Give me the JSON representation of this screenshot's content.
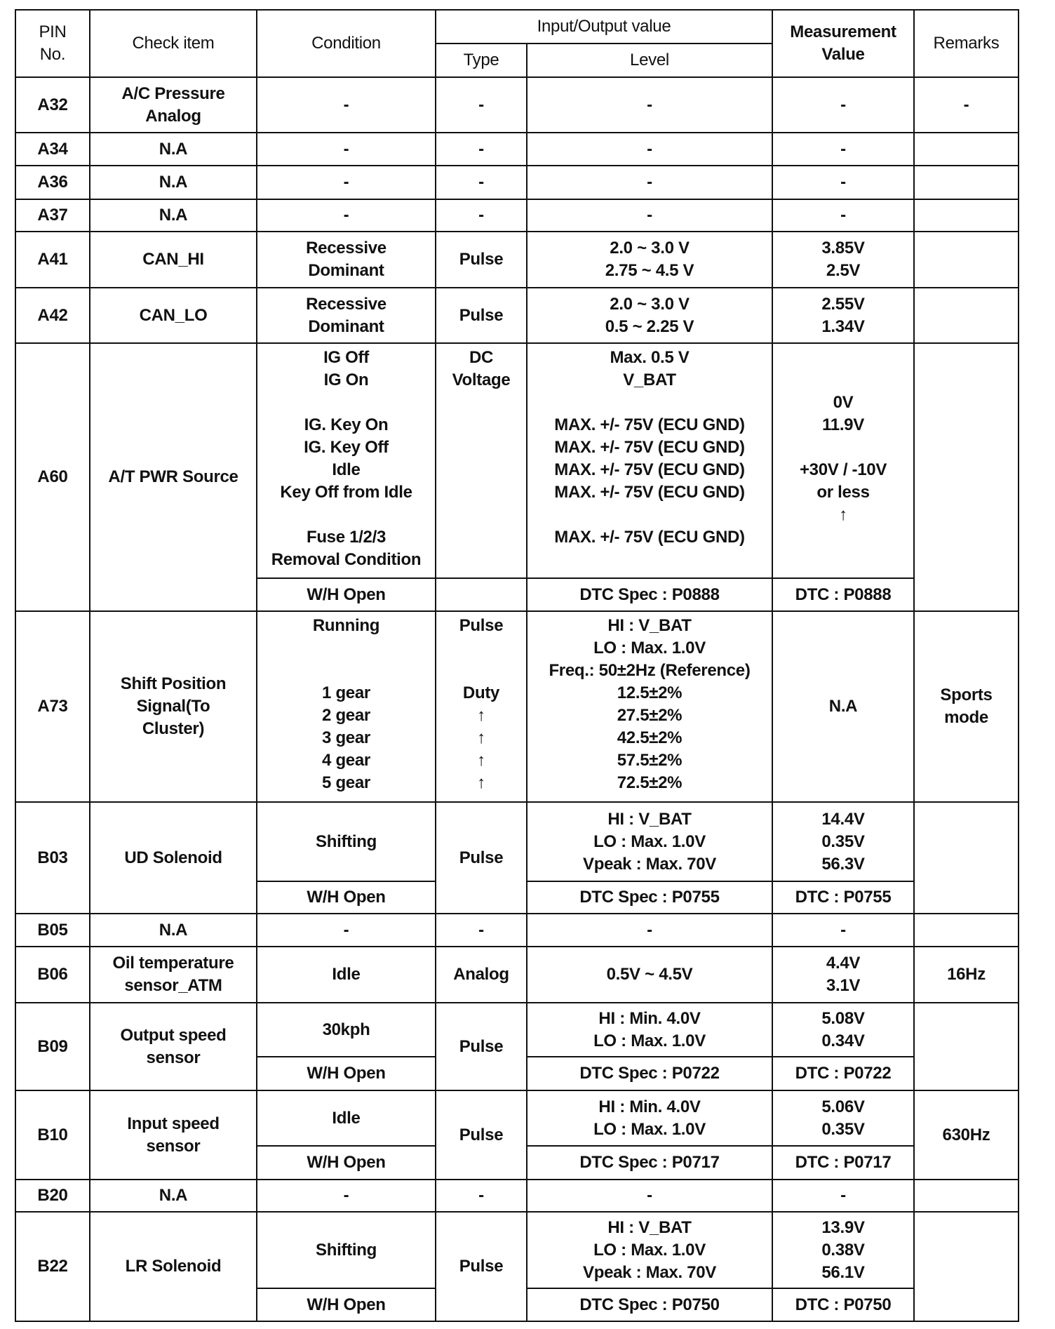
{
  "header": {
    "pin": "PIN\nNo.",
    "check_item": "Check item",
    "condition": "Condition",
    "io_value": "Input/Output value",
    "type": "Type",
    "level": "Level",
    "measurement": "Measurement\nValue",
    "remarks": "Remarks"
  },
  "rows": [
    {
      "pin": "A32",
      "check_item": "A/C Pressure\nAnalog",
      "condition": "-",
      "type": "-",
      "level": "-",
      "measurement": "-",
      "remarks": "-"
    },
    {
      "pin": "A34",
      "check_item": "N.A",
      "condition": "-",
      "type": "-",
      "level": "-",
      "measurement": "-",
      "remarks": ""
    },
    {
      "pin": "A36",
      "check_item": "N.A",
      "condition": "-",
      "type": "-",
      "level": "-",
      "measurement": "-",
      "remarks": ""
    },
    {
      "pin": "A37",
      "check_item": "N.A",
      "condition": "-",
      "type": "-",
      "level": "-",
      "measurement": "-",
      "remarks": ""
    },
    {
      "pin": "A41",
      "check_item": "CAN_HI",
      "condition": "Recessive\nDominant",
      "type": "Pulse",
      "level": "2.0 ~ 3.0 V\n2.75 ~ 4.5 V",
      "measurement": "3.85V\n2.5V",
      "remarks": ""
    },
    {
      "pin": "A42",
      "check_item": "CAN_LO",
      "condition": "Recessive\nDominant",
      "type": "Pulse",
      "level": "2.0 ~ 3.0 V\n0.5 ~ 2.25 V",
      "measurement": "2.55V\n1.34V",
      "remarks": ""
    },
    {
      "pin": "A60",
      "check_item": "A/T PWR Source",
      "condition": "IG Off\nIG On\n\nIG. Key On\nIG. Key Off\nIdle\nKey Off from Idle\n\nFuse 1/2/3\nRemoval Condition",
      "type": "DC\nVoltage",
      "level": "Max.  0.5 V\nV_BAT\n\nMAX. +/- 75V (ECU GND)\nMAX. +/- 75V (ECU GND)\nMAX. +/- 75V (ECU GND)\nMAX. +/- 75V (ECU GND)\n\nMAX. +/- 75V (ECU GND)",
      "measurement": "\n\n0V\n11.9V\n\n+30V / -10V\nor less\n↑",
      "remarks": "",
      "sub": {
        "condition": "W/H Open",
        "type": "",
        "level": "DTC Spec :  P0888",
        "measurement": "DTC : P0888"
      }
    },
    {
      "pin": "A73",
      "check_item": "Shift Position\nSignal(To\nCluster)",
      "condition": "Running\n\n\n1 gear\n2 gear\n3 gear\n4 gear\n5 gear",
      "type": "Pulse\n\n\nDuty\n↑\n↑\n↑\n↑",
      "level": "HI : V_BAT\nLO : Max.  1.0V\nFreq.: 50±2Hz (Reference)\n12.5±2%\n27.5±2%\n42.5±2%\n57.5±2%\n72.5±2%",
      "measurement": "N.A",
      "remarks": "Sports\nmode"
    },
    {
      "pin": "B03",
      "check_item": "UD Solenoid",
      "condition": "Shifting",
      "type": "Pulse",
      "level": "HI : V_BAT\nLO : Max.  1.0V\nVpeak :  Max.  70V",
      "measurement": "14.4V\n0.35V\n56.3V",
      "remarks": "",
      "sub": {
        "condition": "W/H Open",
        "level": "DTC Spec :  P0755",
        "measurement": "DTC : P0755"
      }
    },
    {
      "pin": "B05",
      "check_item": "N.A",
      "condition": "-",
      "type": "-",
      "level": "-",
      "measurement": "-",
      "remarks": ""
    },
    {
      "pin": "B06",
      "check_item": "Oil temperature\nsensor_ATM",
      "condition": "Idle",
      "type": "Analog",
      "level": "0.5V ~ 4.5V",
      "measurement": "4.4V\n3.1V",
      "remarks": "16Hz"
    },
    {
      "pin": "B09",
      "check_item": "Output speed\nsensor",
      "condition": "30kph",
      "type": "Pulse",
      "level": "HI : Min.  4.0V\nLO : Max.  1.0V",
      "measurement": "5.08V\n0.34V",
      "remarks": "",
      "sub": {
        "condition": "W/H Open",
        "level": "DTC Spec :  P0722",
        "measurement": "DTC : P0722"
      }
    },
    {
      "pin": "B10",
      "check_item": "Input speed\nsensor",
      "condition": "Idle",
      "type": "Pulse",
      "level": "HI : Min.  4.0V\nLO : Max.  1.0V",
      "measurement": "5.06V\n0.35V",
      "remarks": "630Hz",
      "sub": {
        "condition": "W/H Open",
        "level": "DTC Spec :  P0717",
        "measurement": "DTC : P0717"
      }
    },
    {
      "pin": "B20",
      "check_item": "N.A",
      "condition": "-",
      "type": "-",
      "level": "-",
      "measurement": "-",
      "remarks": ""
    },
    {
      "pin": "B22",
      "check_item": "LR Solenoid",
      "condition": "Shifting",
      "type": "Pulse",
      "level": "HI : V_BAT\nLO : Max.  1.0V\nVpeak :  Max.  70V",
      "measurement": "13.9V\n0.38V\n56.1V",
      "remarks": "",
      "sub": {
        "condition": "W/H Open",
        "level": "DTC Spec :  P0750",
        "measurement": "DTC : P0750"
      }
    }
  ]
}
